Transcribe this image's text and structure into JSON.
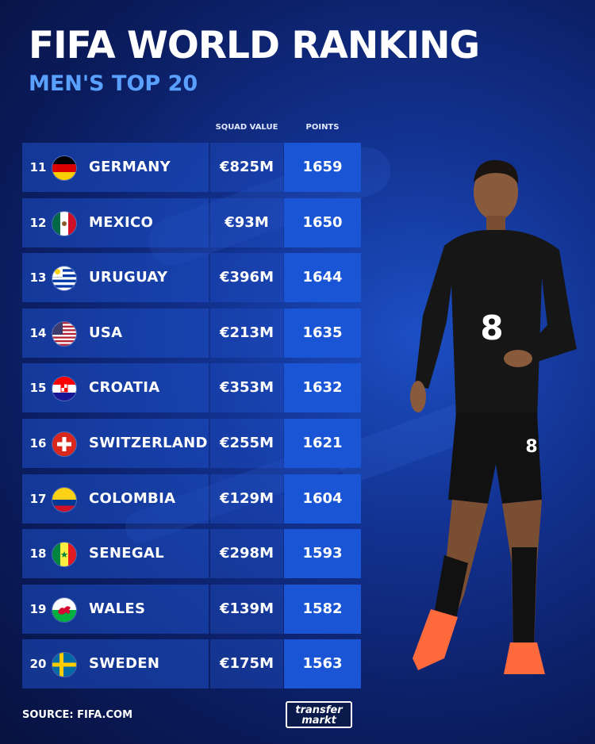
{
  "header": {
    "title": "FIFA WORLD RANKING",
    "subtitle": "MEN'S TOP 20"
  },
  "columns": {
    "squad_value": "SQUAD VALUE",
    "points": "POINTS"
  },
  "rows": [
    {
      "rank": "11",
      "country": "GERMANY",
      "value": "€825M",
      "points": "1659",
      "flag": "germany-flag-icon"
    },
    {
      "rank": "12",
      "country": "MEXICO",
      "value": "€93M",
      "points": "1650",
      "flag": "mexico-flag-icon"
    },
    {
      "rank": "13",
      "country": "URUGUAY",
      "value": "€396M",
      "points": "1644",
      "flag": "uruguay-flag-icon"
    },
    {
      "rank": "14",
      "country": "USA",
      "value": "€213M",
      "points": "1635",
      "flag": "usa-flag-icon"
    },
    {
      "rank": "15",
      "country": "CROATIA",
      "value": "€353M",
      "points": "1632",
      "flag": "croatia-flag-icon"
    },
    {
      "rank": "16",
      "country": "SWITZERLAND",
      "value": "€255M",
      "points": "1621",
      "flag": "switzerland-flag-icon"
    },
    {
      "rank": "17",
      "country": "COLOMBIA",
      "value": "€129M",
      "points": "1604",
      "flag": "colombia-flag-icon"
    },
    {
      "rank": "18",
      "country": "SENEGAL",
      "value": "€298M",
      "points": "1593",
      "flag": "senegal-flag-icon"
    },
    {
      "rank": "19",
      "country": "WALES",
      "value": "€139M",
      "points": "1582",
      "flag": "wales-flag-icon"
    },
    {
      "rank": "20",
      "country": "SWEDEN",
      "value": "€175M",
      "points": "1563",
      "flag": "sweden-flag-icon"
    }
  ],
  "footer": {
    "source": "SOURCE: FIFA.COM",
    "logo_line1": "transfer",
    "logo_line2": "markt"
  },
  "player": {
    "shirt_number": "8",
    "short_number": "8"
  },
  "colors": {
    "background": "#0b1c5e",
    "accent": "#5aa0ff",
    "points_cell": "#1a55d6"
  }
}
